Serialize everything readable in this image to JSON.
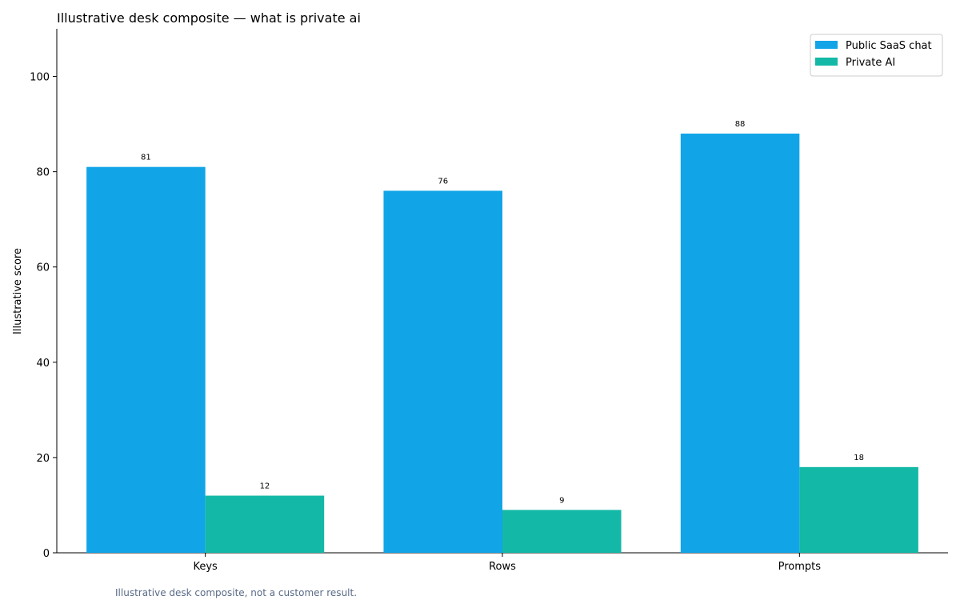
{
  "chart_data": {
    "type": "bar",
    "title": "Illustrative desk composite — what is private ai",
    "xlabel": "",
    "ylabel": "Illustrative score",
    "categories": [
      "Keys",
      "Rows",
      "Prompts"
    ],
    "series": [
      {
        "name": "Public SaaS chat",
        "values": [
          81,
          76,
          88
        ],
        "color": "#11a5e8"
      },
      {
        "name": "Private AI",
        "values": [
          12,
          9,
          18
        ],
        "color": "#14b8a6"
      }
    ],
    "ylim": [
      0,
      110
    ],
    "yticks": [
      0,
      20,
      40,
      60,
      80,
      100
    ],
    "grid": false,
    "legend_position": "top-right"
  },
  "footnote": "Illustrative desk composite, not a customer result."
}
